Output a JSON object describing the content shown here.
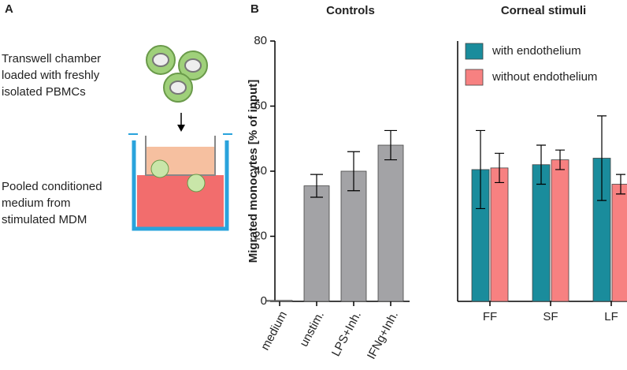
{
  "panel_a": {
    "label": "A",
    "top_text": [
      "Transwell chamber",
      "loaded with freshly",
      "isolated PBMCs"
    ],
    "bottom_text": [
      "Pooled conditioned",
      "medium from",
      "stimulated MDM"
    ]
  },
  "panel_b": {
    "label": "B"
  },
  "chart_data": [
    {
      "type": "bar",
      "title": "Controls",
      "y_label": "Migrated monocytes [% of input]",
      "categories": [
        "medium",
        "unstim.",
        "LPS+Inh.",
        "IFNg+Inh."
      ],
      "values": [
        0.3,
        35.5,
        40,
        48
      ],
      "errors": [
        0,
        3.5,
        6,
        4.5
      ],
      "color": "#a3a3a6",
      "ylim": [
        0,
        80
      ],
      "yticks": [
        0,
        20,
        40,
        60,
        80
      ]
    },
    {
      "type": "bar",
      "title": "Corneal stimuli",
      "categories": [
        "FF",
        "SF",
        "LF"
      ],
      "series": [
        {
          "name": "with endothelium",
          "color": "#1a8c9c",
          "values": [
            40.5,
            42,
            44
          ],
          "errors": [
            12,
            6,
            13
          ]
        },
        {
          "name": "without endothelium",
          "color": "#f78181",
          "values": [
            41,
            43.5,
            36
          ],
          "errors": [
            4.5,
            3,
            3
          ]
        }
      ],
      "ylim": [
        0,
        80
      ],
      "legend": "upper left"
    }
  ]
}
